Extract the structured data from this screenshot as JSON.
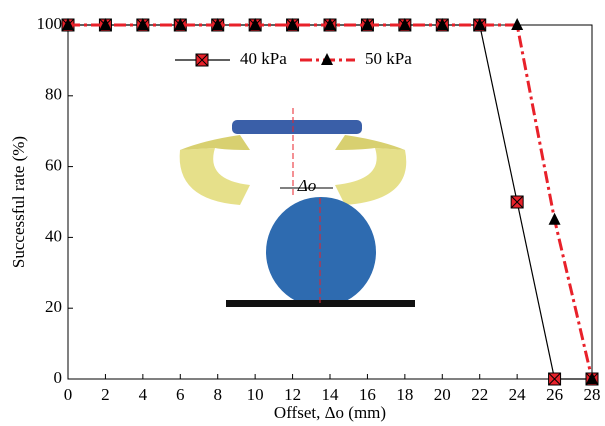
{
  "chart_data": {
    "type": "line",
    "x_label": "Offset, Δo (mm)",
    "y_label": "Successful rate (%)",
    "annotation": "Δo",
    "x": [
      0,
      2,
      4,
      6,
      8,
      10,
      12,
      14,
      16,
      18,
      20,
      22,
      24,
      26,
      28
    ],
    "series": [
      {
        "name": "40 kPa",
        "color": "#000000",
        "marker_color": "#e8212a",
        "marker": "square-x",
        "line_style": "solid",
        "values": [
          100,
          100,
          100,
          100,
          100,
          100,
          100,
          100,
          100,
          100,
          100,
          100,
          50,
          0,
          0
        ]
      },
      {
        "name": "50 kPa",
        "color": "#e8212a",
        "marker_color": "#000000",
        "marker": "triangle",
        "line_style": "dashdot",
        "values": [
          100,
          100,
          100,
          100,
          100,
          100,
          100,
          100,
          100,
          100,
          100,
          100,
          100,
          45,
          0
        ]
      }
    ],
    "xlim": [
      0,
      28
    ],
    "xticks": [
      0,
      2,
      4,
      6,
      8,
      10,
      12,
      14,
      16,
      18,
      20,
      22,
      24,
      26,
      28
    ],
    "ylim": [
      0,
      100
    ],
    "yticks": [
      0,
      20,
      40,
      60,
      80,
      100
    ]
  }
}
